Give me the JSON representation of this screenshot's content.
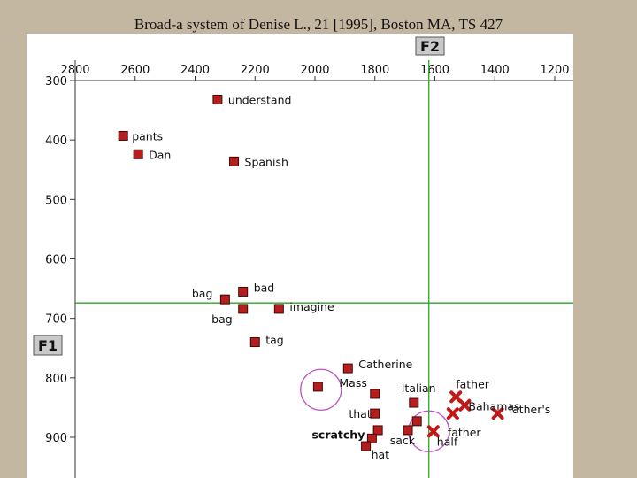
{
  "title": "Broad-a system of Denise L., 21 [1995], Boston MA, TS 427",
  "chart_data": {
    "type": "scatter",
    "title": "Broad-a system of Denise L., 21 [1995], Boston MA, TS 427",
    "xlabel": "F2",
    "ylabel": "F1",
    "xlim": [
      2800,
      1200
    ],
    "ylim": [
      900,
      300
    ],
    "x_reversed": true,
    "y_reversed": true,
    "x_ticks": [
      2800,
      2600,
      2400,
      2200,
      2000,
      1800,
      1600,
      1400,
      1200
    ],
    "y_ticks": [
      300,
      400,
      500,
      600,
      700,
      800,
      900
    ],
    "grid": false,
    "reference_lines": {
      "vertical_F2": 1620,
      "horizontal_F1": 674
    },
    "colors": {
      "square": "#b81d1d",
      "cross": "#c41818",
      "line": "#2aa52a",
      "circle": "#c24ec2"
    },
    "points": [
      {
        "label": "understand",
        "F2": 2325,
        "F1": 332,
        "marker": "square"
      },
      {
        "label": "pants",
        "F2": 2640,
        "F1": 393,
        "marker": "square"
      },
      {
        "label": "Dan",
        "F2": 2590,
        "F1": 424,
        "marker": "square"
      },
      {
        "label": "Spanish",
        "F2": 2270,
        "F1": 436,
        "marker": "square"
      },
      {
        "label": "bad",
        "F2": 2240,
        "F1": 655,
        "marker": "square"
      },
      {
        "label": "bag",
        "F2": 2300,
        "F1": 668,
        "marker": "square"
      },
      {
        "label": "bag",
        "F2": 2240,
        "F1": 684,
        "marker": "square"
      },
      {
        "label": "imagine",
        "F2": 2120,
        "F1": 684,
        "marker": "square"
      },
      {
        "label": "tag",
        "F2": 2200,
        "F1": 740,
        "marker": "square"
      },
      {
        "label": "Catherine",
        "F2": 1890,
        "F1": 784,
        "marker": "square"
      },
      {
        "label": "Mass",
        "F2": 1990,
        "F1": 815,
        "marker": "square"
      },
      {
        "label": "Italian",
        "F2": 1800,
        "F1": 827,
        "marker": "square"
      },
      {
        "label": "that",
        "F2": 1800,
        "F1": 860,
        "marker": "square"
      },
      {
        "label": "",
        "F2": 1670,
        "F1": 842,
        "marker": "square"
      },
      {
        "label": "",
        "F2": 1660,
        "F1": 873,
        "marker": "square"
      },
      {
        "label": "",
        "F2": 1790,
        "F1": 888,
        "marker": "square"
      },
      {
        "label": "sack",
        "F2": 1690,
        "F1": 888,
        "marker": "square"
      },
      {
        "label": "scratchy",
        "F2": 1810,
        "F1": 902,
        "marker": "square"
      },
      {
        "label": "hat",
        "F2": 1830,
        "F1": 915,
        "marker": "square"
      },
      {
        "label": "half",
        "F2": 1605,
        "F1": 890,
        "marker": "cross"
      },
      {
        "label": "father",
        "F2": 1530,
        "F1": 832,
        "marker": "cross"
      },
      {
        "label": "Bahamas",
        "F2": 1500,
        "F1": 846,
        "marker": "cross"
      },
      {
        "label": "father",
        "F2": 1540,
        "F1": 860,
        "marker": "cross"
      },
      {
        "label": "father's",
        "F2": 1390,
        "F1": 860,
        "marker": "cross"
      }
    ],
    "circled": [
      {
        "F2": 1980,
        "F1": 820
      },
      {
        "F2": 1620,
        "F1": 890
      }
    ]
  }
}
